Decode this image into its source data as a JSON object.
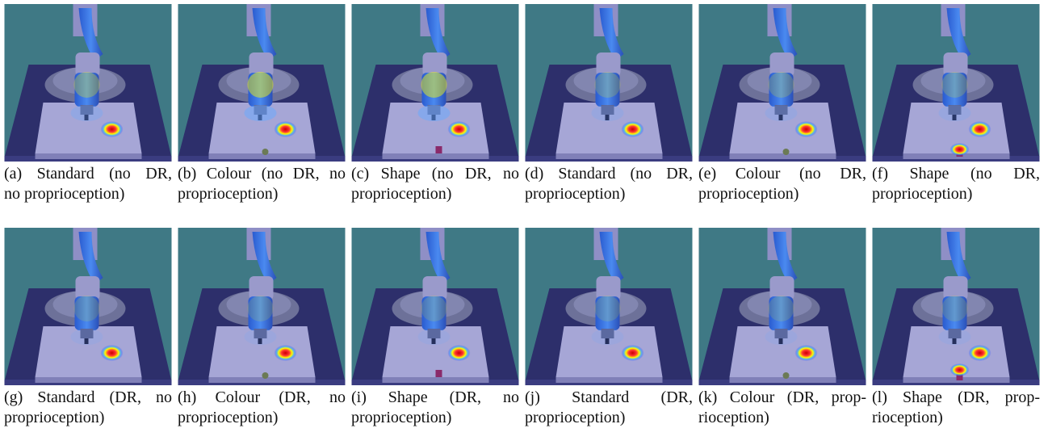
{
  "figure": {
    "panels": [
      {
        "caption_lines": [
          "(a) Standard (no DR,",
          "no proprioception)"
        ]
      },
      {
        "caption_lines": [
          "(b) Colour (no DR, no",
          "proprioception)"
        ]
      },
      {
        "caption_lines": [
          "(c) Shape (no DR, no",
          "proprioception)"
        ]
      },
      {
        "caption_lines": [
          "(d) Standard (no DR,",
          "proprioception)"
        ]
      },
      {
        "caption_lines": [
          "(e) Colour (no DR,",
          "proprioception)"
        ]
      },
      {
        "caption_lines": [
          "(f) Shape (no DR,",
          "proprioception)"
        ]
      },
      {
        "caption_lines": [
          "(g) Standard (DR, no",
          "proprioception)"
        ]
      },
      {
        "caption_lines": [
          "(h) Colour (DR, no",
          "proprioception)"
        ]
      },
      {
        "caption_lines": [
          "(i) Shape (DR, no",
          "proprioception)"
        ]
      },
      {
        "caption_lines": [
          "(j) Standard (DR,",
          "proprioception)"
        ]
      },
      {
        "caption_lines": [
          "(k) Colour (DR, prop-",
          "rioception)"
        ]
      },
      {
        "caption_lines": [
          "(l) Shape (DR, prop-",
          "rioception)"
        ]
      }
    ]
  }
}
